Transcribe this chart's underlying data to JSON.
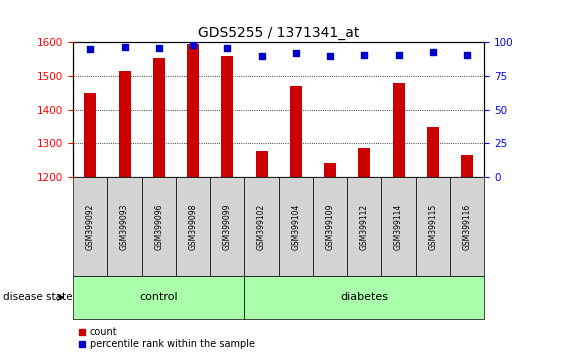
{
  "title": "GDS5255 / 1371341_at",
  "samples": [
    "GSM399092",
    "GSM399093",
    "GSM399096",
    "GSM399098",
    "GSM399099",
    "GSM399102",
    "GSM399104",
    "GSM399109",
    "GSM399112",
    "GSM399114",
    "GSM399115",
    "GSM399116"
  ],
  "counts": [
    1450,
    1515,
    1553,
    1595,
    1560,
    1278,
    1470,
    1243,
    1285,
    1480,
    1348,
    1265
  ],
  "percentiles": [
    95,
    97,
    96,
    98,
    96,
    90,
    92,
    90,
    91,
    91,
    93,
    91
  ],
  "groups": [
    "control",
    "control",
    "control",
    "control",
    "control",
    "diabetes",
    "diabetes",
    "diabetes",
    "diabetes",
    "diabetes",
    "diabetes",
    "diabetes"
  ],
  "n_control": 5,
  "n_diabetes": 7,
  "control_color": "#aaffaa",
  "diabetes_color": "#aaffaa",
  "bar_color": "#cc0000",
  "dot_color": "#0000cc",
  "ylim_left": [
    1200,
    1600
  ],
  "ylim_right": [
    0,
    100
  ],
  "yticks_left": [
    1200,
    1300,
    1400,
    1500,
    1600
  ],
  "yticks_right": [
    0,
    25,
    50,
    75,
    100
  ],
  "grid_color": "black",
  "label_bg": "#d3d3d3"
}
